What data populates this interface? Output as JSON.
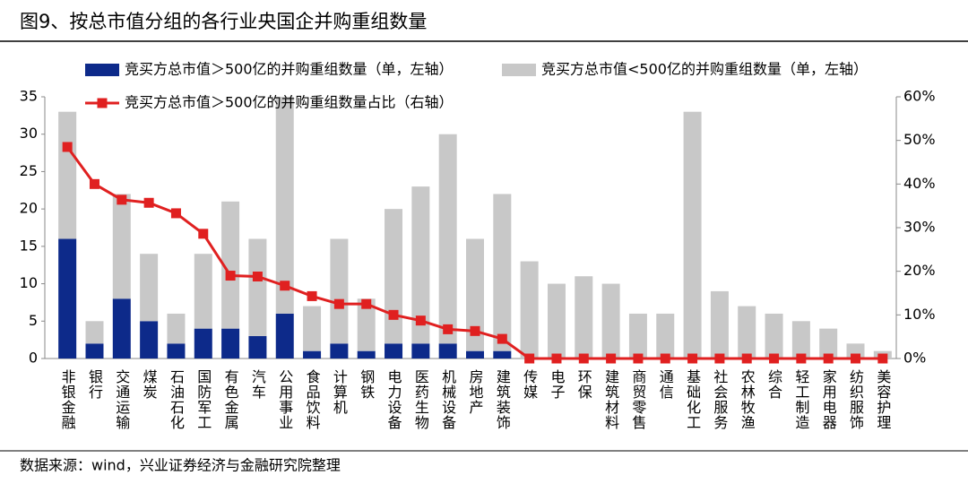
{
  "chart_data": {
    "type": "bar-line",
    "title": "图9、按总市值分组的各行业央国企并购重组数量",
    "source": "数据来源：wind，兴业证券经济与金融研究院整理",
    "categories": [
      "非银金融",
      "银行",
      "交通运输",
      "煤炭",
      "石油石化",
      "国防军工",
      "有色金属",
      "汽车",
      "公用事业",
      "食品饮料",
      "计算机",
      "钢铁",
      "电力设备",
      "医药生物",
      "机械设备",
      "房地产",
      "建筑装饰",
      "传媒",
      "电子",
      "环保",
      "建筑材料",
      "商贸零售",
      "通信",
      "基础化工",
      "社会服务",
      "农林牧渔",
      "综合",
      "轻工制造",
      "家用电器",
      "纺织服饰",
      "美容护理"
    ],
    "series": [
      {
        "name": "竞买方总市值＞500亿的并购重组数量（单，左轴）",
        "color": "#0d2a8a",
        "stack": true,
        "values": [
          16,
          2,
          8,
          5,
          2,
          4,
          4,
          3,
          6,
          1,
          2,
          1,
          2,
          2,
          2,
          1,
          1,
          0,
          0,
          0,
          0,
          0,
          0,
          0,
          0,
          0,
          0,
          0,
          0,
          0,
          0
        ]
      },
      {
        "name": "竞买方总市值<500亿的并购重组数量（单，左轴）",
        "color": "#c8c8c8",
        "stack": true,
        "values": [
          17,
          3,
          14,
          9,
          4,
          10,
          17,
          13,
          30,
          6,
          14,
          7,
          18,
          21,
          28,
          15,
          21,
          13,
          10,
          11,
          10,
          6,
          6,
          33,
          9,
          7,
          6,
          5,
          4,
          2,
          1
        ]
      },
      {
        "name": "竞买方总市值＞500亿的并购重组数量占比（右轴）",
        "color": "#e02020",
        "axis": "y2",
        "values": [
          48.5,
          40,
          36.4,
          35.7,
          33.3,
          28.6,
          19,
          18.8,
          16.7,
          14.3,
          12.5,
          12.5,
          10,
          8.7,
          6.7,
          6.3,
          4.5,
          0,
          0,
          0,
          0,
          0,
          0,
          0,
          0,
          0,
          0,
          0,
          0,
          0,
          0
        ]
      }
    ],
    "ylim": [
      0,
      35
    ],
    "yticks": [
      0,
      5,
      10,
      15,
      20,
      25,
      30,
      35
    ],
    "y2lim": [
      0,
      60
    ],
    "y2ticks": [
      {
        "value": 0,
        "label": "0%"
      },
      {
        "value": 10,
        "label": "10%"
      },
      {
        "value": 20,
        "label": "20%"
      },
      {
        "value": 30,
        "label": "30%"
      },
      {
        "value": 40,
        "label": "40%"
      },
      {
        "value": 50,
        "label": "50%"
      },
      {
        "value": 60,
        "label": "60%"
      }
    ]
  }
}
